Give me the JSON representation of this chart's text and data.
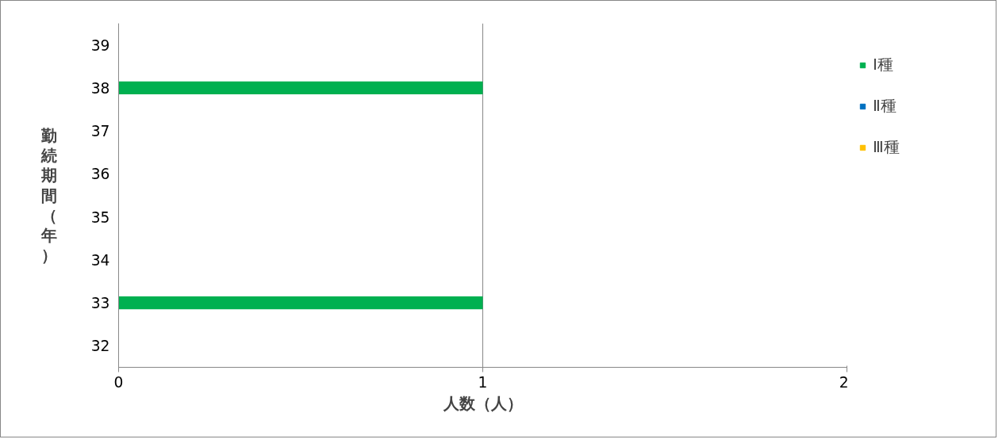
{
  "chart_data": {
    "type": "bar",
    "orientation": "horizontal",
    "stacked": true,
    "xlabel": "人数（人）",
    "ylabel": "勤続期間（年）",
    "categories": [
      "39",
      "38",
      "37",
      "36",
      "35",
      "34",
      "33",
      "32"
    ],
    "series": [
      {
        "name": "Ⅰ種",
        "color": "#00b050",
        "values": [
          null,
          1,
          null,
          null,
          null,
          null,
          1,
          null
        ]
      },
      {
        "name": "Ⅱ種",
        "color": "#0070c0",
        "values": [
          null,
          null,
          null,
          null,
          null,
          null,
          null,
          null
        ]
      },
      {
        "name": "Ⅲ種",
        "color": "#ffc000",
        "values": [
          null,
          null,
          null,
          null,
          null,
          null,
          null,
          null
        ]
      }
    ],
    "xlim": [
      0,
      2
    ],
    "xticks": [
      0,
      1,
      2
    ],
    "grid": "x",
    "legend": "right"
  }
}
